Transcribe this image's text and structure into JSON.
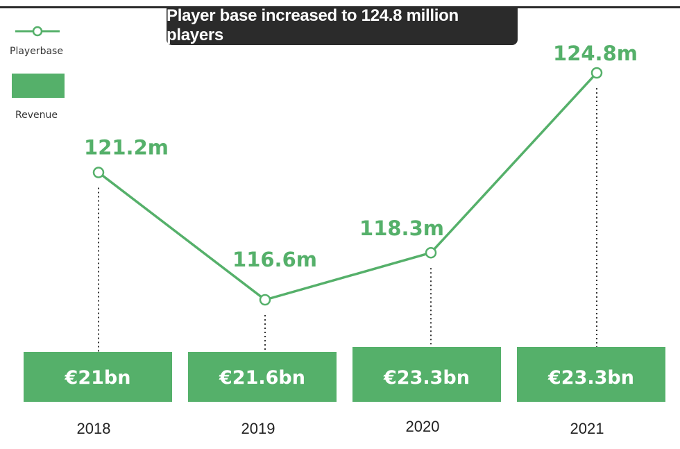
{
  "title": "Player base increased to 124.8 million players",
  "legend": {
    "playerbase_label": "Playerbase",
    "revenue_label": "Revenue"
  },
  "colors": {
    "accent": "#55b06a",
    "bar": "#55b06a",
    "title_bg": "#2b2b2b"
  },
  "chart_data": {
    "type": "bar",
    "categories": [
      "2018",
      "2019",
      "2020",
      "2021"
    ],
    "series": [
      {
        "name": "Playerbase",
        "type": "line",
        "values": [
          121.2,
          116.6,
          118.3,
          124.8
        ],
        "labels": [
          "121.2m",
          "116.6m",
          "118.3m",
          "124.8m"
        ]
      },
      {
        "name": "Revenue",
        "type": "bar",
        "values": [
          21,
          21.6,
          23.3,
          23.3
        ],
        "labels": [
          "€21bn",
          "€21.6bn",
          "€23.3bn",
          "€23.3bn"
        ]
      }
    ],
    "title": "Player base increased to 124.8 million players",
    "xlabel": "",
    "ylabel": "",
    "grid": false,
    "legend_position": "top-left"
  }
}
